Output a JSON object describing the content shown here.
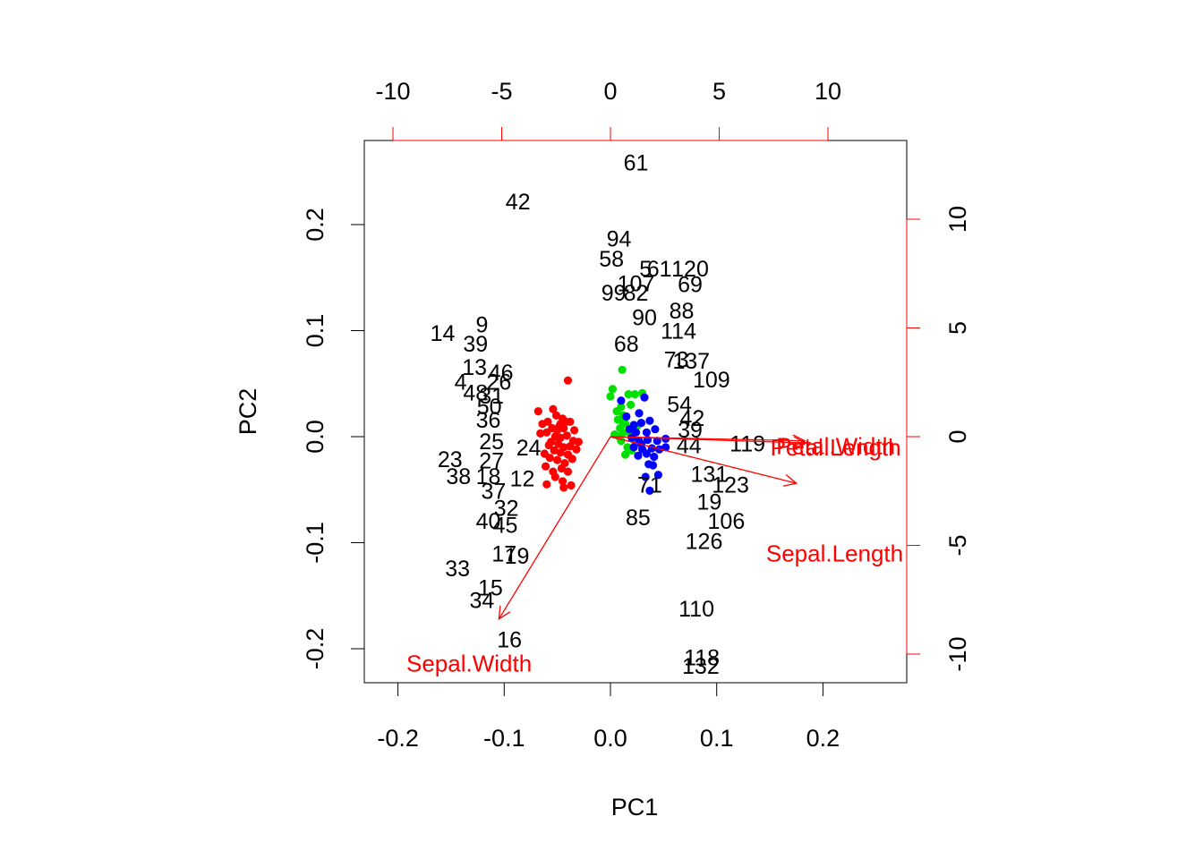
{
  "chart_data": {
    "type": "scatter",
    "subtype": "biplot",
    "title": "",
    "xlabel": "PC1",
    "ylabel": "PC2",
    "xlim": [
      -0.2,
      0.2
    ],
    "ylim": [
      -0.2,
      0.2
    ],
    "xticks": [
      "-0.2",
      "-0.1",
      "0.0",
      "0.1",
      "0.2"
    ],
    "yticks": [
      "-0.2",
      "-0.1",
      "0.0",
      "0.1",
      "0.2"
    ],
    "secondary_axis_color": "#ff0000",
    "top_ticks": [
      "-10",
      "-5",
      "0",
      "5",
      "10"
    ],
    "right_ticks": [
      "-10",
      "-5",
      "0",
      "5",
      "10"
    ],
    "secondary_xlim": [
      -10,
      10
    ],
    "secondary_ylim": [
      -10,
      10
    ],
    "grid": false,
    "legend": "none",
    "observation_labels": [
      {
        "label": "61",
        "x": 0.024,
        "y": 0.258
      },
      {
        "label": "42",
        "x": -0.087,
        "y": 0.221
      },
      {
        "label": "94",
        "x": 0.008,
        "y": 0.186
      },
      {
        "label": "58",
        "x": 0.001,
        "y": 0.167
      },
      {
        "label": "5",
        "x": 0.033,
        "y": 0.158
      },
      {
        "label": "61",
        "x": 0.046,
        "y": 0.158
      },
      {
        "label": "120",
        "x": 0.075,
        "y": 0.158
      },
      {
        "label": "69",
        "x": 0.075,
        "y": 0.143
      },
      {
        "label": "107",
        "x": 0.024,
        "y": 0.144
      },
      {
        "label": "99",
        "x": 0.003,
        "y": 0.135
      },
      {
        "label": "82",
        "x": 0.024,
        "y": 0.135
      },
      {
        "label": "90",
        "x": 0.032,
        "y": 0.112
      },
      {
        "label": "88",
        "x": 0.067,
        "y": 0.118
      },
      {
        "label": "114",
        "x": 0.064,
        "y": 0.099
      },
      {
        "label": "14",
        "x": -0.158,
        "y": 0.097
      },
      {
        "label": "9",
        "x": -0.121,
        "y": 0.105
      },
      {
        "label": "39",
        "x": -0.127,
        "y": 0.087
      },
      {
        "label": "68",
        "x": 0.015,
        "y": 0.087
      },
      {
        "label": "73",
        "x": 0.062,
        "y": 0.072
      },
      {
        "label": "137",
        "x": 0.076,
        "y": 0.071
      },
      {
        "label": "109",
        "x": 0.095,
        "y": 0.053
      },
      {
        "label": "13",
        "x": -0.128,
        "y": 0.065
      },
      {
        "label": "46",
        "x": -0.103,
        "y": 0.06
      },
      {
        "label": "4",
        "x": -0.141,
        "y": 0.051
      },
      {
        "label": "26",
        "x": -0.105,
        "y": 0.051
      },
      {
        "label": "48",
        "x": -0.127,
        "y": 0.041
      },
      {
        "label": "31",
        "x": -0.112,
        "y": 0.038
      },
      {
        "label": "50",
        "x": -0.114,
        "y": 0.028
      },
      {
        "label": "36",
        "x": -0.115,
        "y": 0.015
      },
      {
        "label": "25",
        "x": -0.112,
        "y": -0.005
      },
      {
        "label": "24",
        "x": -0.077,
        "y": -0.011
      },
      {
        "label": "23",
        "x": -0.151,
        "y": -0.022
      },
      {
        "label": "27",
        "x": -0.112,
        "y": -0.023
      },
      {
        "label": "38",
        "x": -0.143,
        "y": -0.038
      },
      {
        "label": "18",
        "x": -0.115,
        "y": -0.038
      },
      {
        "label": "12",
        "x": -0.083,
        "y": -0.04
      },
      {
        "label": "37",
        "x": -0.11,
        "y": -0.052
      },
      {
        "label": "32",
        "x": -0.098,
        "y": -0.068
      },
      {
        "label": "40",
        "x": -0.115,
        "y": -0.08
      },
      {
        "label": "45",
        "x": -0.099,
        "y": -0.084
      },
      {
        "label": "17",
        "x": -0.1,
        "y": -0.111
      },
      {
        "label": "19",
        "x": -0.088,
        "y": -0.113
      },
      {
        "label": "33",
        "x": -0.144,
        "y": -0.125
      },
      {
        "label": "15",
        "x": -0.113,
        "y": -0.143
      },
      {
        "label": "34",
        "x": -0.121,
        "y": -0.155
      },
      {
        "label": "16",
        "x": -0.095,
        "y": -0.192
      },
      {
        "label": "119",
        "x": 0.129,
        "y": -0.007
      },
      {
        "label": "54",
        "x": 0.065,
        "y": 0.03
      },
      {
        "label": "42",
        "x": 0.077,
        "y": 0.017
      },
      {
        "label": "39",
        "x": 0.075,
        "y": 0.006
      },
      {
        "label": "44",
        "x": 0.074,
        "y": -0.009
      },
      {
        "label": "71",
        "x": 0.037,
        "y": -0.046
      },
      {
        "label": "131",
        "x": 0.093,
        "y": -0.036
      },
      {
        "label": "123",
        "x": 0.113,
        "y": -0.046
      },
      {
        "label": "19",
        "x": 0.093,
        "y": -0.062
      },
      {
        "label": "85",
        "x": 0.026,
        "y": -0.077
      },
      {
        "label": "106",
        "x": 0.109,
        "y": -0.08
      },
      {
        "label": "126",
        "x": 0.088,
        "y": -0.099
      },
      {
        "label": "110",
        "x": 0.081,
        "y": -0.163
      },
      {
        "label": "118",
        "x": 0.086,
        "y": -0.209
      },
      {
        "label": "132",
        "x": 0.085,
        "y": -0.217
      }
    ],
    "series": [
      {
        "color": "#ff0000",
        "points": [
          [
            -0.04,
            0.053
          ],
          [
            -0.068,
            0.024
          ],
          [
            -0.054,
            0.026
          ],
          [
            -0.051,
            0.02
          ],
          [
            -0.045,
            0.017
          ],
          [
            -0.059,
            0.014
          ],
          [
            -0.064,
            0.012
          ],
          [
            -0.047,
            0.012
          ],
          [
            -0.042,
            0.014
          ],
          [
            -0.038,
            0.014
          ],
          [
            -0.055,
            0.008
          ],
          [
            -0.05,
            0.006
          ],
          [
            -0.044,
            0.008
          ],
          [
            -0.06,
            0.004
          ],
          [
            -0.052,
            0.0
          ],
          [
            -0.047,
            -0.001
          ],
          [
            -0.041,
            0.001
          ],
          [
            -0.035,
            -0.004
          ],
          [
            -0.056,
            -0.005
          ],
          [
            -0.049,
            -0.007
          ],
          [
            -0.044,
            -0.01
          ],
          [
            -0.038,
            -0.009
          ],
          [
            -0.032,
            -0.012
          ],
          [
            -0.053,
            -0.013
          ],
          [
            -0.047,
            -0.015
          ],
          [
            -0.04,
            -0.017
          ],
          [
            -0.057,
            -0.02
          ],
          [
            -0.05,
            -0.022
          ],
          [
            -0.043,
            -0.025
          ],
          [
            -0.036,
            -0.021
          ],
          [
            -0.061,
            -0.028
          ],
          [
            -0.054,
            -0.033
          ],
          [
            -0.046,
            -0.03
          ],
          [
            -0.04,
            -0.033
          ],
          [
            -0.052,
            -0.038
          ],
          [
            -0.045,
            -0.042
          ],
          [
            -0.06,
            -0.045
          ],
          [
            -0.044,
            -0.048
          ],
          [
            -0.037,
            -0.046
          ],
          [
            -0.058,
            -0.008
          ],
          [
            -0.03,
            -0.005
          ],
          [
            -0.062,
            -0.016
          ],
          [
            -0.048,
            0.01
          ],
          [
            -0.066,
            0.003
          ],
          [
            -0.034,
            0.006
          ]
        ]
      },
      {
        "color": "#00e000",
        "points": [
          [
            0.011,
            0.063
          ],
          [
            0.002,
            0.045
          ],
          [
            0.0,
            0.038
          ],
          [
            0.017,
            0.04
          ],
          [
            0.023,
            0.04
          ],
          [
            0.03,
            0.041
          ],
          [
            0.006,
            0.024
          ],
          [
            0.01,
            0.028
          ],
          [
            0.012,
            0.02
          ],
          [
            0.011,
            0.015
          ],
          [
            0.014,
            0.012
          ],
          [
            0.009,
            0.008
          ],
          [
            0.012,
            0.004
          ],
          [
            0.008,
            0.0
          ],
          [
            0.01,
            -0.004
          ],
          [
            0.016,
            -0.01
          ],
          [
            0.014,
            -0.017
          ],
          [
            0.02,
            -0.013
          ],
          [
            0.025,
            0.01
          ],
          [
            0.019,
            0.03
          ],
          [
            0.004,
            0.002
          ],
          [
            0.027,
            0.022
          ],
          [
            0.018,
            0.004
          ],
          [
            0.022,
            -0.003
          ],
          [
            0.007,
            0.016
          ]
        ]
      },
      {
        "color": "#0000ff",
        "points": [
          [
            0.032,
            0.037
          ],
          [
            0.01,
            0.034
          ],
          [
            0.027,
            0.022
          ],
          [
            0.015,
            0.019
          ],
          [
            0.022,
            0.011
          ],
          [
            0.029,
            0.013
          ],
          [
            0.037,
            0.015
          ],
          [
            0.042,
            0.007
          ],
          [
            0.024,
            0.004
          ],
          [
            0.034,
            0.004
          ],
          [
            0.02,
            -0.001
          ],
          [
            0.027,
            -0.004
          ],
          [
            0.035,
            -0.003
          ],
          [
            0.044,
            -0.004
          ],
          [
            0.052,
            -0.002
          ],
          [
            0.022,
            -0.01
          ],
          [
            0.03,
            -0.012
          ],
          [
            0.039,
            -0.011
          ],
          [
            0.046,
            -0.012
          ],
          [
            0.026,
            -0.018
          ],
          [
            0.034,
            -0.016
          ],
          [
            0.041,
            -0.019
          ],
          [
            0.052,
            -0.01
          ],
          [
            0.036,
            -0.026
          ],
          [
            0.04,
            -0.027
          ],
          [
            0.045,
            -0.036
          ],
          [
            0.037,
            -0.051
          ],
          [
            0.033,
            -0.038
          ],
          [
            0.029,
            -0.007
          ],
          [
            0.018,
            0.007
          ]
        ]
      }
    ],
    "loading_arrows": [
      {
        "name": "Petal.Length",
        "x": 0.184,
        "y": -0.006
      },
      {
        "name": "Petal.Width",
        "x": 0.183,
        "y": -0.004
      },
      {
        "name": "Sepal.Length",
        "x": 0.175,
        "y": -0.044
      },
      {
        "name": "Sepal.Width",
        "x": -0.105,
        "y": -0.172
      }
    ],
    "loading_labels": [
      {
        "text": "Petal.Width",
        "x": 0.212,
        "y": -0.009
      },
      {
        "text": "Petal.Length",
        "x": 0.212,
        "y": -0.01
      },
      {
        "text": "Sepal.Length",
        "x": 0.211,
        "y": -0.11
      },
      {
        "text": "Sepal.Width",
        "x": -0.133,
        "y": -0.214
      }
    ]
  }
}
